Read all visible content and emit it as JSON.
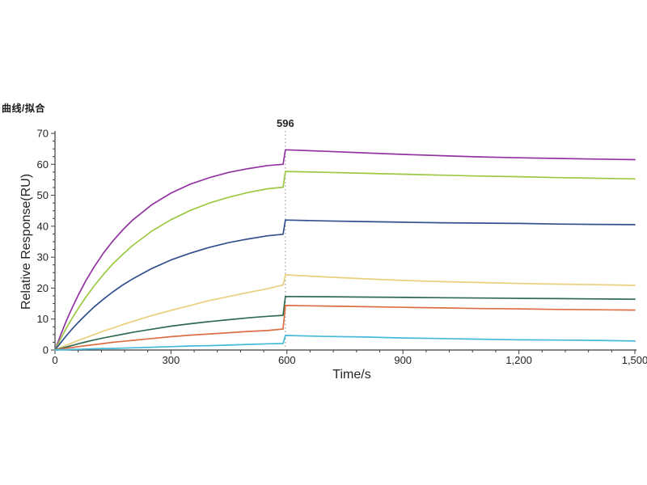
{
  "header_label": "曲线/拟合",
  "annotation": {
    "label": "596",
    "x": 596
  },
  "axes": {
    "x": {
      "label": "Time/s",
      "min": 0,
      "max": 1500,
      "major_ticks": [
        0,
        300,
        600,
        900,
        1200,
        1500
      ],
      "tick_labels": [
        "0",
        "300",
        "600",
        "900",
        "1,200",
        "1,500"
      ],
      "minor_step": 60
    },
    "y": {
      "label": "Relative Response(RU)",
      "min": 0,
      "max": 70,
      "major_ticks": [
        0,
        10,
        20,
        30,
        40,
        50,
        60,
        70
      ],
      "tick_labels": [
        "0",
        "10",
        "20",
        "30",
        "40",
        "50",
        "60",
        "70"
      ],
      "minor_step": 2.5
    }
  },
  "chart_data": {
    "type": "line",
    "title": "",
    "xlabel": "Time/s",
    "ylabel": "Relative Response(RU)",
    "xlim": [
      0,
      1500
    ],
    "ylim": [
      0,
      70
    ],
    "grid": false,
    "legend": "none",
    "annotation_x": 596,
    "x": [
      0,
      15,
      30,
      45,
      60,
      80,
      100,
      125,
      150,
      175,
      200,
      250,
      300,
      350,
      400,
      450,
      500,
      550,
      590,
      596,
      700,
      800,
      900,
      1000,
      1100,
      1200,
      1300,
      1400,
      1500
    ],
    "series": [
      {
        "name": "curve-purple",
        "color": "#9333A2",
        "values": [
          0,
          5.0,
          9.6,
          13.8,
          17.7,
          22.4,
          26.6,
          31.3,
          35.3,
          38.8,
          41.9,
          46.9,
          50.7,
          53.6,
          55.7,
          57.4,
          58.6,
          59.6,
          60.0,
          64.7,
          64.2,
          63.7,
          63.2,
          62.8,
          62.4,
          62.1,
          61.9,
          61.7,
          61.5
        ]
      },
      {
        "name": "curve-yellowgreen",
        "color": "#9CC842",
        "values": [
          0,
          3.7,
          7.2,
          10.4,
          13.4,
          17.1,
          20.5,
          24.4,
          27.9,
          30.9,
          33.7,
          38.4,
          42.1,
          45.1,
          47.5,
          49.4,
          50.9,
          52.1,
          52.6,
          57.7,
          57.4,
          57.1,
          56.8,
          56.5,
          56.2,
          56.0,
          55.7,
          55.5,
          55.3
        ]
      },
      {
        "name": "curve-blue",
        "color": "#32508E",
        "values": [
          0,
          2.4,
          4.7,
          6.9,
          8.9,
          11.4,
          13.8,
          16.4,
          18.8,
          21.0,
          22.9,
          26.3,
          29.1,
          31.3,
          33.2,
          34.7,
          35.9,
          36.9,
          37.4,
          42.0,
          41.7,
          41.5,
          41.3,
          41.1,
          41.0,
          40.9,
          40.7,
          40.6,
          40.5
        ]
      },
      {
        "name": "curve-yellow",
        "color": "#E9CF7E",
        "values": [
          0,
          0.8,
          1.6,
          2.3,
          3.1,
          4.0,
          4.9,
          6.1,
          7.1,
          8.2,
          9.2,
          11.1,
          12.8,
          14.4,
          16.0,
          17.3,
          18.6,
          19.8,
          21.0,
          24.3,
          23.6,
          23.0,
          22.5,
          22.1,
          21.8,
          21.5,
          21.3,
          21.1,
          20.9
        ]
      },
      {
        "name": "curve-darkgreen",
        "color": "#306B52",
        "values": [
          0,
          0.5,
          1.0,
          1.5,
          2.0,
          2.6,
          3.2,
          3.9,
          4.5,
          5.1,
          5.7,
          6.7,
          7.7,
          8.5,
          9.2,
          9.8,
          10.4,
          10.9,
          11.2,
          17.3,
          17.2,
          17.1,
          17.0,
          16.9,
          16.8,
          16.7,
          16.6,
          16.5,
          16.4
        ]
      },
      {
        "name": "curve-orange",
        "color": "#DD6E45",
        "values": [
          0,
          0.3,
          0.6,
          0.8,
          1.1,
          1.4,
          1.7,
          2.1,
          2.5,
          2.8,
          3.1,
          3.7,
          4.3,
          4.8,
          5.2,
          5.6,
          6.0,
          6.3,
          6.8,
          14.4,
          14.2,
          14.0,
          13.8,
          13.6,
          13.4,
          13.3,
          13.1,
          13.0,
          12.9
        ]
      },
      {
        "name": "curve-cyan",
        "color": "#45BAD9",
        "values": [
          0,
          0.1,
          0.1,
          0.2,
          0.2,
          0.3,
          0.4,
          0.5,
          0.5,
          0.6,
          0.7,
          0.9,
          1.1,
          1.3,
          1.4,
          1.6,
          1.8,
          2.0,
          2.1,
          4.7,
          4.4,
          4.2,
          3.9,
          3.7,
          3.5,
          3.3,
          3.2,
          3.1,
          2.9
        ]
      }
    ]
  }
}
